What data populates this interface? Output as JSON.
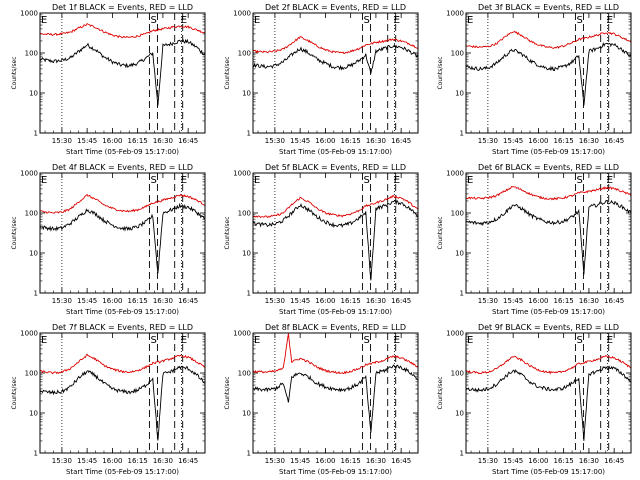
{
  "figure": {
    "start_time_label": "Start Time (05-Feb-09 15:17:00)",
    "colors": {
      "events": "#000000",
      "lld": "#dd0000"
    }
  },
  "chart_data": [
    {
      "type": "line",
      "title": "Det 1f BLACK = Events, RED = LLD",
      "xlabel": "Start Time (05-Feb-09 15:17:00)",
      "ylabel": "Counts/sec",
      "yscale": "log",
      "xlim": [
        "15:17",
        "16:55"
      ],
      "ylim": [
        1,
        1000
      ],
      "x_ticks": [
        "15:30",
        "15:45",
        "16:00",
        "16:15",
        "16:30",
        "16:45"
      ],
      "y_ticks": [
        "1",
        "10",
        "100",
        "1000"
      ],
      "markers": [
        {
          "label": "E",
          "time": "15:17"
        },
        {
          "label": "S",
          "time": "16:22"
        },
        {
          "label": "E",
          "time": "16:37"
        }
      ],
      "x": [
        "15:17",
        "15:25",
        "15:30",
        "15:35",
        "15:40",
        "15:45",
        "15:50",
        "15:55",
        "16:00",
        "16:05",
        "16:10",
        "16:15",
        "16:20",
        "16:24",
        "16:27",
        "16:30",
        "16:35",
        "16:40",
        "16:45",
        "16:50",
        "16:55"
      ],
      "series": [
        {
          "name": "BLACK = Events",
          "values": [
            70,
            62,
            65,
            75,
            110,
            160,
            120,
            80,
            60,
            50,
            48,
            55,
            75,
            100,
            5,
            150,
            170,
            200,
            190,
            140,
            90
          ]
        },
        {
          "name": "RED = LLD",
          "values": [
            300,
            290,
            300,
            330,
            420,
            520,
            440,
            340,
            280,
            250,
            245,
            265,
            300,
            360,
            380,
            400,
            440,
            470,
            450,
            380,
            320
          ]
        }
      ]
    },
    {
      "type": "line",
      "title": "Det 2f BLACK = Events, RED = LLD",
      "xlabel": "Start Time (05-Feb-09 15:17:00)",
      "ylabel": "Counts/sec",
      "yscale": "log",
      "xlim": [
        "15:17",
        "16:55"
      ],
      "ylim": [
        1,
        1000
      ],
      "x_ticks": [
        "15:30",
        "15:45",
        "16:00",
        "16:15",
        "16:30",
        "16:45"
      ],
      "y_ticks": [
        "1",
        "10",
        "100",
        "1000"
      ],
      "markers": [
        {
          "label": "E",
          "time": "15:17"
        },
        {
          "label": "S",
          "time": "16:22"
        },
        {
          "label": "E",
          "time": "16:37"
        }
      ],
      "x": [
        "15:17",
        "15:25",
        "15:30",
        "15:35",
        "15:40",
        "15:45",
        "15:50",
        "15:55",
        "16:00",
        "16:05",
        "16:10",
        "16:15",
        "16:20",
        "16:24",
        "16:27",
        "16:30",
        "16:35",
        "16:40",
        "16:45",
        "16:50",
        "16:55"
      ],
      "series": [
        {
          "name": "BLACK = Events",
          "values": [
            50,
            45,
            48,
            60,
            90,
            130,
            100,
            70,
            55,
            45,
            43,
            48,
            65,
            90,
            30,
            110,
            130,
            150,
            140,
            110,
            80
          ]
        },
        {
          "name": "RED = LLD",
          "values": [
            110,
            105,
            110,
            125,
            175,
            250,
            200,
            150,
            120,
            105,
            100,
            110,
            130,
            160,
            170,
            185,
            200,
            220,
            200,
            170,
            135
          ]
        }
      ]
    },
    {
      "type": "line",
      "title": "Det 3f BLACK = Events, RED = LLD",
      "xlabel": "Start Time (05-Feb-09 15:17:00)",
      "ylabel": "Counts/sec",
      "yscale": "log",
      "xlim": [
        "15:17",
        "16:55"
      ],
      "ylim": [
        1,
        1000
      ],
      "x_ticks": [
        "15:30",
        "15:45",
        "16:00",
        "16:15",
        "16:30",
        "16:45"
      ],
      "y_ticks": [
        "1",
        "10",
        "100",
        "1000"
      ],
      "markers": [
        {
          "label": "E",
          "time": "15:17"
        },
        {
          "label": "S",
          "time": "16:22"
        },
        {
          "label": "E",
          "time": "16:37"
        }
      ],
      "x": [
        "15:17",
        "15:25",
        "15:30",
        "15:35",
        "15:40",
        "15:45",
        "15:50",
        "15:55",
        "16:00",
        "16:05",
        "16:10",
        "16:15",
        "16:20",
        "16:24",
        "16:27",
        "16:30",
        "16:35",
        "16:40",
        "16:45",
        "16:50",
        "16:55"
      ],
      "series": [
        {
          "name": "BLACK = Events",
          "values": [
            45,
            40,
            42,
            55,
            85,
            120,
            95,
            65,
            50,
            42,
            40,
            45,
            60,
            85,
            5,
            110,
            130,
            170,
            160,
            120,
            80
          ]
        },
        {
          "name": "RED = LLD",
          "values": [
            150,
            140,
            145,
            170,
            250,
            350,
            280,
            200,
            160,
            140,
            135,
            150,
            180,
            220,
            230,
            250,
            280,
            330,
            300,
            240,
            190
          ]
        }
      ]
    },
    {
      "type": "line",
      "title": "Det 4f BLACK = Events, RED = LLD",
      "xlabel": "Start Time (05-Feb-09 15:17:00)",
      "ylabel": "Counts/sec",
      "yscale": "log",
      "xlim": [
        "15:17",
        "16:55"
      ],
      "ylim": [
        1,
        1000
      ],
      "x_ticks": [
        "15:30",
        "15:45",
        "16:00",
        "16:15",
        "16:30",
        "16:45"
      ],
      "y_ticks": [
        "1",
        "10",
        "100",
        "1000"
      ],
      "markers": [
        {
          "label": "E",
          "time": "15:17"
        },
        {
          "label": "S",
          "time": "16:22"
        },
        {
          "label": "E",
          "time": "16:37"
        }
      ],
      "x": [
        "15:17",
        "15:25",
        "15:30",
        "15:35",
        "15:40",
        "15:45",
        "15:50",
        "15:55",
        "16:00",
        "16:05",
        "16:10",
        "16:15",
        "16:20",
        "16:24",
        "16:27",
        "16:30",
        "16:35",
        "16:40",
        "16:45",
        "16:50",
        "16:55"
      ],
      "series": [
        {
          "name": "BLACK = Events",
          "values": [
            45,
            40,
            42,
            55,
            80,
            120,
            95,
            65,
            50,
            42,
            40,
            45,
            60,
            85,
            3,
            100,
            120,
            150,
            140,
            105,
            70
          ]
        },
        {
          "name": "RED = LLD",
          "values": [
            110,
            100,
            105,
            125,
            190,
            280,
            220,
            160,
            130,
            115,
            110,
            120,
            145,
            180,
            190,
            210,
            240,
            280,
            260,
            210,
            160
          ]
        }
      ]
    },
    {
      "type": "line",
      "title": "Det 5f BLACK = Events, RED = LLD",
      "xlabel": "Start Time (05-Feb-09 15:17:00)",
      "ylabel": "Counts/sec",
      "yscale": "log",
      "xlim": [
        "15:17",
        "16:55"
      ],
      "ylim": [
        1,
        1000
      ],
      "x_ticks": [
        "15:30",
        "15:45",
        "16:00",
        "16:15",
        "16:30",
        "16:45"
      ],
      "y_ticks": [
        "1",
        "10",
        "100",
        "1000"
      ],
      "markers": [
        {
          "label": "E",
          "time": "15:17"
        },
        {
          "label": "S",
          "time": "16:22"
        },
        {
          "label": "E",
          "time": "16:37"
        }
      ],
      "x": [
        "15:17",
        "15:25",
        "15:30",
        "15:35",
        "15:40",
        "15:45",
        "15:50",
        "15:55",
        "16:00",
        "16:05",
        "16:10",
        "16:15",
        "16:20",
        "16:24",
        "16:27",
        "16:30",
        "16:35",
        "16:40",
        "16:45",
        "16:50",
        "16:55"
      ],
      "series": [
        {
          "name": "BLACK = Events",
          "values": [
            55,
            50,
            52,
            65,
            100,
            160,
            120,
            80,
            60,
            50,
            48,
            55,
            75,
            100,
            2,
            130,
            150,
            190,
            180,
            130,
            85
          ]
        },
        {
          "name": "RED = LLD",
          "values": [
            85,
            80,
            85,
            100,
            160,
            240,
            190,
            130,
            100,
            90,
            85,
            95,
            115,
            150,
            160,
            180,
            210,
            260,
            240,
            180,
            120
          ]
        }
      ]
    },
    {
      "type": "line",
      "title": "Det 6f BLACK = Events, RED = LLD",
      "xlabel": "Start Time (05-Feb-09 15:17:00)",
      "ylabel": "Counts/sec",
      "yscale": "log",
      "xlim": [
        "15:17",
        "16:55"
      ],
      "ylim": [
        1,
        1000
      ],
      "x_ticks": [
        "15:30",
        "15:45",
        "16:00",
        "16:15",
        "16:30",
        "16:45"
      ],
      "y_ticks": [
        "1",
        "10",
        "100",
        "1000"
      ],
      "markers": [
        {
          "label": "E",
          "time": "15:17"
        },
        {
          "label": "S",
          "time": "16:22"
        },
        {
          "label": "E",
          "time": "16:37"
        }
      ],
      "x": [
        "15:17",
        "15:25",
        "15:30",
        "15:35",
        "15:40",
        "15:45",
        "15:50",
        "15:55",
        "16:00",
        "16:05",
        "16:10",
        "16:15",
        "16:20",
        "16:24",
        "16:27",
        "16:30",
        "16:35",
        "16:40",
        "16:45",
        "16:50",
        "16:55"
      ],
      "series": [
        {
          "name": "BLACK = Events",
          "values": [
            60,
            55,
            58,
            70,
            100,
            160,
            130,
            90,
            70,
            60,
            57,
            62,
            80,
            110,
            3,
            140,
            160,
            190,
            180,
            140,
            100
          ]
        },
        {
          "name": "RED = LLD",
          "values": [
            240,
            230,
            240,
            270,
            350,
            460,
            380,
            300,
            250,
            230,
            225,
            240,
            270,
            320,
            330,
            350,
            380,
            430,
            410,
            340,
            280
          ]
        }
      ]
    },
    {
      "type": "line",
      "title": "Det 7f BLACK = Events, RED = LLD",
      "xlabel": "Start Time (05-Feb-09 15:17:00)",
      "ylabel": "Counts/sec",
      "yscale": "log",
      "xlim": [
        "15:17",
        "16:55"
      ],
      "ylim": [
        1,
        1000
      ],
      "x_ticks": [
        "15:30",
        "15:45",
        "16:00",
        "16:15",
        "16:30",
        "16:45"
      ],
      "y_ticks": [
        "1",
        "10",
        "100",
        "1000"
      ],
      "markers": [
        {
          "label": "E",
          "time": "15:17"
        },
        {
          "label": "S",
          "time": "16:22"
        },
        {
          "label": "E",
          "time": "16:37"
        }
      ],
      "x": [
        "15:17",
        "15:25",
        "15:30",
        "15:35",
        "15:40",
        "15:45",
        "15:50",
        "15:55",
        "16:00",
        "16:05",
        "16:10",
        "16:15",
        "16:20",
        "16:24",
        "16:27",
        "16:30",
        "16:35",
        "16:40",
        "16:45",
        "16:50",
        "16:55"
      ],
      "series": [
        {
          "name": "BLACK = Events",
          "values": [
            35,
            32,
            34,
            45,
            75,
            110,
            85,
            55,
            40,
            35,
            33,
            37,
            50,
            75,
            2,
            95,
            110,
            140,
            130,
            90,
            55
          ]
        },
        {
          "name": "RED = LLD",
          "values": [
            110,
            100,
            105,
            130,
            190,
            280,
            220,
            155,
            125,
            110,
            105,
            115,
            140,
            175,
            185,
            200,
            230,
            270,
            250,
            190,
            140
          ]
        }
      ]
    },
    {
      "type": "line",
      "title": "Det 8f BLACK = Events, RED = LLD",
      "xlabel": "Start Time (05-Feb-09 15:17:00)",
      "ylabel": "Counts/sec",
      "yscale": "log",
      "xlim": [
        "15:17",
        "16:55"
      ],
      "ylim": [
        1,
        1000
      ],
      "x_ticks": [
        "15:30",
        "15:45",
        "16:00",
        "16:15",
        "16:30",
        "16:45"
      ],
      "y_ticks": [
        "1",
        "10",
        "100",
        "1000"
      ],
      "markers": [
        {
          "label": "E",
          "time": "15:17"
        },
        {
          "label": "S",
          "time": "16:22"
        },
        {
          "label": "E",
          "time": "16:37"
        }
      ],
      "x": [
        "15:17",
        "15:25",
        "15:30",
        "15:35",
        "15:38",
        "15:40",
        "15:45",
        "15:50",
        "15:55",
        "16:00",
        "16:05",
        "16:10",
        "16:15",
        "16:20",
        "16:24",
        "16:27",
        "16:30",
        "16:35",
        "16:40",
        "16:45",
        "16:50",
        "16:55"
      ],
      "series": [
        {
          "name": "BLACK = Events",
          "values": [
            40,
            38,
            40,
            55,
            18,
            80,
            100,
            80,
            55,
            45,
            40,
            38,
            42,
            55,
            80,
            3,
            100,
            115,
            150,
            140,
            105,
            70
          ]
        },
        {
          "name": "RED = LLD",
          "values": [
            110,
            105,
            110,
            130,
            1000,
            190,
            230,
            190,
            140,
            115,
            105,
            100,
            110,
            130,
            160,
            170,
            185,
            210,
            260,
            240,
            190,
            140
          ]
        }
      ]
    },
    {
      "type": "line",
      "title": "Det 9f BLACK = Events, RED = LLD",
      "xlabel": "Start Time (05-Feb-09 15:17:00)",
      "ylabel": "Counts/sec",
      "yscale": "log",
      "xlim": [
        "15:17",
        "16:55"
      ],
      "ylim": [
        1,
        1000
      ],
      "x_ticks": [
        "15:30",
        "15:45",
        "16:00",
        "16:15",
        "16:30",
        "16:45"
      ],
      "y_ticks": [
        "1",
        "10",
        "100",
        "1000"
      ],
      "markers": [
        {
          "label": "E",
          "time": "15:17"
        },
        {
          "label": "S",
          "time": "16:22"
        },
        {
          "label": "E",
          "time": "16:37"
        }
      ],
      "x": [
        "15:17",
        "15:25",
        "15:30",
        "15:35",
        "15:40",
        "15:45",
        "15:50",
        "15:55",
        "16:00",
        "16:05",
        "16:10",
        "16:15",
        "16:20",
        "16:24",
        "16:27",
        "16:30",
        "16:35",
        "16:40",
        "16:45",
        "16:50",
        "16:55"
      ],
      "series": [
        {
          "name": "BLACK = Events",
          "values": [
            40,
            37,
            40,
            52,
            80,
            115,
            90,
            60,
            45,
            40,
            38,
            42,
            55,
            75,
            2,
            95,
            110,
            140,
            130,
            95,
            60
          ]
        },
        {
          "name": "RED = LLD",
          "values": [
            110,
            100,
            105,
            125,
            180,
            260,
            210,
            150,
            120,
            105,
            100,
            110,
            135,
            170,
            180,
            195,
            220,
            260,
            240,
            185,
            135
          ]
        }
      ]
    }
  ]
}
